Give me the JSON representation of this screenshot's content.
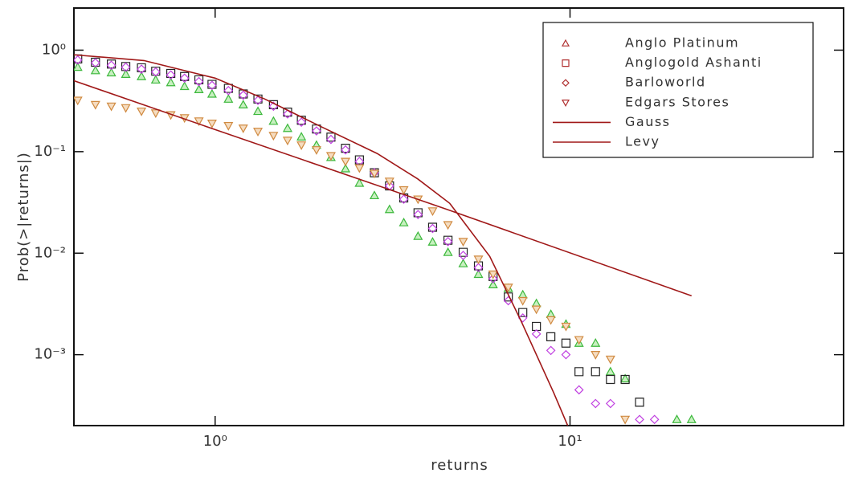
{
  "chart_data": {
    "type": "scatter",
    "xlabel": "returns",
    "ylabel": "Prob(>|returns|)",
    "xscale": "log",
    "yscale": "log",
    "xlim": [
      0.4,
      59
    ],
    "ylim": [
      0.0002,
      2.6
    ],
    "xticks": [
      {
        "value": 1,
        "label": "10⁰"
      },
      {
        "value": 10,
        "label": "10¹"
      }
    ],
    "yticks": [
      {
        "value": 1,
        "label": "10⁰"
      },
      {
        "value": 0.1,
        "label": "10⁻¹"
      },
      {
        "value": 0.01,
        "label": "10⁻²"
      },
      {
        "value": 0.001,
        "label": "10⁻³"
      }
    ],
    "legend": "upper right",
    "legend_marker_color": "#b03030",
    "series": [
      {
        "name": "Anglo Platinum",
        "marker": "triangle",
        "color": "#3cb83c",
        "fill": "#c8f0c0",
        "x": [
          0.41,
          0.46,
          0.51,
          0.56,
          0.62,
          0.68,
          0.75,
          0.82,
          0.9,
          0.98,
          1.09,
          1.2,
          1.32,
          1.46,
          1.6,
          1.75,
          1.93,
          2.12,
          2.33,
          2.55,
          2.81,
          3.1,
          3.4,
          3.73,
          4.1,
          4.53,
          5.0,
          5.52,
          6.07,
          6.7,
          7.36,
          8.04,
          8.83,
          9.74,
          10.6,
          11.8,
          13.0,
          14.3,
          20,
          22
        ],
        "values": [
          0.68,
          0.63,
          0.6,
          0.58,
          0.55,
          0.51,
          0.48,
          0.44,
          0.41,
          0.37,
          0.33,
          0.29,
          0.25,
          0.2,
          0.17,
          0.14,
          0.116,
          0.088,
          0.068,
          0.049,
          0.037,
          0.027,
          0.02,
          0.0147,
          0.0129,
          0.0102,
          0.0079,
          0.0062,
          0.0049,
          0.0045,
          0.0039,
          0.0032,
          0.0025,
          0.002,
          0.0013,
          0.0013,
          0.00068,
          0.00058,
          0.00023,
          0.00023
        ]
      },
      {
        "name": "Anglogold Ashanti",
        "marker": "square",
        "color": "#222222",
        "fill": "none",
        "x": [
          0.41,
          0.46,
          0.51,
          0.56,
          0.62,
          0.68,
          0.75,
          0.82,
          0.9,
          0.98,
          1.09,
          1.2,
          1.32,
          1.46,
          1.6,
          1.75,
          1.93,
          2.12,
          2.33,
          2.55,
          2.81,
          3.1,
          3.4,
          3.73,
          4.1,
          4.53,
          5.0,
          5.52,
          6.07,
          6.7,
          7.36,
          8.04,
          8.83,
          9.74,
          10.6,
          11.8,
          13.0,
          14.3,
          15.7
        ],
        "values": [
          0.82,
          0.76,
          0.73,
          0.69,
          0.67,
          0.62,
          0.59,
          0.55,
          0.51,
          0.46,
          0.42,
          0.37,
          0.33,
          0.29,
          0.245,
          0.204,
          0.167,
          0.139,
          0.108,
          0.083,
          0.062,
          0.046,
          0.035,
          0.025,
          0.018,
          0.0134,
          0.0102,
          0.0075,
          0.0059,
          0.0037,
          0.0026,
          0.0019,
          0.0015,
          0.0013,
          0.00068,
          0.00068,
          0.00057,
          0.00057,
          0.00034
        ]
      },
      {
        "name": "Barloworld",
        "marker": "diamond",
        "color": "#c040e0",
        "fill": "none",
        "x": [
          0.41,
          0.46,
          0.51,
          0.56,
          0.62,
          0.68,
          0.75,
          0.82,
          0.9,
          0.98,
          1.09,
          1.2,
          1.32,
          1.46,
          1.6,
          1.75,
          1.93,
          2.12,
          2.33,
          2.55,
          2.81,
          3.1,
          3.4,
          3.73,
          4.1,
          4.53,
          5.0,
          5.52,
          6.07,
          6.7,
          7.36,
          8.04,
          8.83,
          9.74,
          10.6,
          11.8,
          13.0,
          15.7,
          17.3
        ],
        "values": [
          0.8,
          0.75,
          0.71,
          0.68,
          0.65,
          0.61,
          0.57,
          0.53,
          0.49,
          0.45,
          0.4,
          0.36,
          0.32,
          0.28,
          0.235,
          0.195,
          0.16,
          0.132,
          0.104,
          0.08,
          0.062,
          0.046,
          0.034,
          0.024,
          0.0175,
          0.013,
          0.0095,
          0.0072,
          0.0056,
          0.0034,
          0.0023,
          0.0016,
          0.0011,
          0.001,
          0.00045,
          0.00033,
          0.00033,
          0.00023,
          0.00023
        ]
      },
      {
        "name": "Edgars Stores",
        "marker": "triangle-down",
        "color": "#d08a40",
        "fill": "#f5dcc0",
        "x": [
          0.41,
          0.46,
          0.51,
          0.56,
          0.62,
          0.68,
          0.75,
          0.82,
          0.9,
          0.98,
          1.09,
          1.2,
          1.32,
          1.46,
          1.6,
          1.75,
          1.93,
          2.12,
          2.33,
          2.55,
          2.81,
          3.1,
          3.4,
          3.73,
          4.1,
          4.53,
          5.0,
          5.52,
          6.07,
          6.7,
          7.36,
          8.04,
          8.83,
          9.74,
          10.6,
          11.8,
          13.0,
          14.3
        ],
        "values": [
          0.32,
          0.29,
          0.28,
          0.27,
          0.25,
          0.24,
          0.23,
          0.215,
          0.2,
          0.19,
          0.18,
          0.17,
          0.158,
          0.144,
          0.129,
          0.116,
          0.104,
          0.091,
          0.08,
          0.069,
          0.061,
          0.051,
          0.042,
          0.034,
          0.026,
          0.019,
          0.013,
          0.0087,
          0.0062,
          0.0046,
          0.0034,
          0.0028,
          0.0022,
          0.0019,
          0.0014,
          0.001,
          0.0009,
          0.00023
        ]
      },
      {
        "name": "Gauss",
        "marker": "line",
        "color": "#a01818",
        "x": [
          0.4,
          0.63,
          1,
          1.38,
          1.99,
          2.86,
          3.72,
          4.58,
          5.94,
          7.3,
          9.0,
          9.85
        ],
        "values": [
          0.9,
          0.79,
          0.53,
          0.33,
          0.176,
          0.096,
          0.054,
          0.031,
          0.0093,
          0.0021,
          0.00042,
          0.0002
        ]
      },
      {
        "name": "Levy",
        "marker": "line",
        "color": "#a01818",
        "x": [
          0.4,
          1,
          4.5,
          22
        ],
        "values": [
          0.5,
          0.165,
          0.027,
          0.0038
        ]
      }
    ]
  }
}
